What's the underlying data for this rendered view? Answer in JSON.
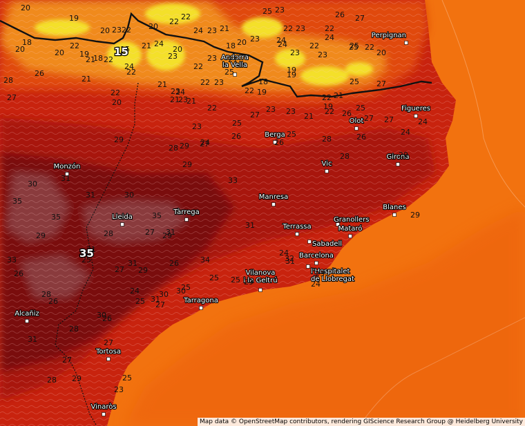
{
  "colors": {
    "sea": "#f2720f",
    "sea_dark": "#ec5f0a",
    "land_warm": "#c8230e",
    "land_mid": "#a8150c",
    "land_hot": "#7a0707",
    "land_hottest": "#8a3a3e",
    "mountain_cool": "#e04a10",
    "mountain_orange": "#f08a1a",
    "mountain_yellow": "#f4e02a",
    "border": "#111111",
    "marker": "#ffffff"
  },
  "cities": [
    {
      "id": "perpignan",
      "name": "Perpignan"
    },
    {
      "id": "andorra",
      "name": "Andorra\nla Vella"
    },
    {
      "id": "figueres",
      "name": "Figueres"
    },
    {
      "id": "olot",
      "name": "Olot"
    },
    {
      "id": "berga",
      "name": "Berga"
    },
    {
      "id": "monzon",
      "name": "Monzón"
    },
    {
      "id": "vic",
      "name": "Vic"
    },
    {
      "id": "girona",
      "name": "Girona"
    },
    {
      "id": "manresa",
      "name": "Manresa"
    },
    {
      "id": "tarrega",
      "name": "Tàrrega"
    },
    {
      "id": "lleida",
      "name": "Lleida"
    },
    {
      "id": "blanes",
      "name": "Blanes"
    },
    {
      "id": "terrassa",
      "name": "Terrassa"
    },
    {
      "id": "granollers",
      "name": "Granollers"
    },
    {
      "id": "mataro",
      "name": "Mataró"
    },
    {
      "id": "sabadell",
      "name": "Sabadell"
    },
    {
      "id": "barcelona",
      "name": "Barcelona"
    },
    {
      "id": "hospitalet",
      "name": "l'Hospitalet\nde Llobregat"
    },
    {
      "id": "vilanova",
      "name": "Vilanova\ni la Geltrú"
    },
    {
      "id": "tarragona",
      "name": "Tarragona"
    },
    {
      "id": "alcaniz",
      "name": "Alcañiz"
    },
    {
      "id": "tortosa",
      "name": "Tortosa"
    },
    {
      "id": "vinaros",
      "name": "Vinaròs"
    }
  ],
  "isotherm_labels": [
    "20",
    "19",
    "20",
    "23",
    "22",
    "20",
    "22",
    "22",
    "24",
    "23",
    "21",
    "25",
    "23",
    "22",
    "23",
    "26",
    "22",
    "27",
    "18",
    "20",
    "22",
    "19",
    "18",
    "15",
    "21",
    "24",
    "23",
    "20",
    "18",
    "20",
    "24",
    "23",
    "22",
    "23",
    "24",
    "25",
    "22",
    "20",
    "21",
    "21",
    "24",
    "22",
    "26",
    "22",
    "22",
    "23",
    "23",
    "24",
    "25",
    "20",
    "28",
    "19",
    "21",
    "19",
    "21",
    "23",
    "22",
    "23",
    "25",
    "21",
    "22",
    "19",
    "18",
    "22",
    "19",
    "25",
    "27",
    "27",
    "25",
    "22",
    "20",
    "21",
    "24",
    "23",
    "21",
    "22",
    "23",
    "23",
    "21",
    "22",
    "26",
    "27",
    "27",
    "24",
    "23",
    "26",
    "25",
    "25",
    "27",
    "28",
    "26",
    "24",
    "26",
    "28",
    "29",
    "29",
    "28",
    "29",
    "24",
    "27",
    "29",
    "33",
    "30",
    "31",
    "35",
    "31",
    "35",
    "30",
    "28",
    "27",
    "29",
    "35",
    "31",
    "25",
    "27",
    "31",
    "29",
    "31",
    "24",
    "32",
    "33",
    "29",
    "31",
    "26",
    "30",
    "24",
    "25",
    "31",
    "27",
    "26",
    "34",
    "28",
    "26",
    "31",
    "28",
    "30",
    "26",
    "27",
    "25",
    "30",
    "25",
    "25",
    "29",
    "31",
    "23",
    "24",
    "29",
    "27",
    "28",
    "29",
    "25",
    "23"
  ],
  "big_values": [
    "15",
    "35"
  ],
  "attribution": "Map data © OpenStreetMap contributors, rendering GIScience Research Group @ Heidelberg University"
}
